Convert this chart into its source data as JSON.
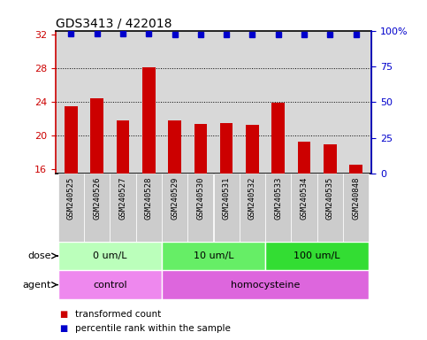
{
  "title": "GDS3413 / 422018",
  "samples": [
    "GSM240525",
    "GSM240526",
    "GSM240527",
    "GSM240528",
    "GSM240529",
    "GSM240530",
    "GSM240531",
    "GSM240532",
    "GSM240533",
    "GSM240534",
    "GSM240535",
    "GSM240848"
  ],
  "bar_values": [
    23.5,
    24.4,
    21.8,
    28.1,
    21.8,
    21.4,
    21.5,
    21.3,
    23.9,
    19.3,
    19.0,
    16.5
  ],
  "dot_y_values": [
    98,
    98,
    98,
    98,
    97,
    97,
    97,
    97,
    97,
    97,
    97,
    97
  ],
  "bar_color": "#cc0000",
  "dot_color": "#0000cc",
  "ylim_left": [
    15.5,
    32.5
  ],
  "ylim_right": [
    0,
    100
  ],
  "yticks_left": [
    16,
    20,
    24,
    28,
    32
  ],
  "yticks_right": [
    0,
    25,
    50,
    75,
    100
  ],
  "hgrid_lines": [
    20,
    24,
    28
  ],
  "dose_groups": [
    {
      "label": "0 um/L",
      "start": 0,
      "end": 4,
      "color": "#bbffbb"
    },
    {
      "label": "10 um/L",
      "start": 4,
      "end": 8,
      "color": "#66ee66"
    },
    {
      "label": "100 um/L",
      "start": 8,
      "end": 12,
      "color": "#33dd33"
    }
  ],
  "agent_groups": [
    {
      "label": "control",
      "start": 0,
      "end": 4,
      "color": "#ee88ee"
    },
    {
      "label": "homocysteine",
      "start": 4,
      "end": 12,
      "color": "#dd66dd"
    }
  ],
  "dose_label": "dose",
  "agent_label": "agent",
  "legend_bar": "transformed count",
  "legend_dot": "percentile rank within the sample",
  "axis_bg": "#d8d8d8",
  "sample_bg": "#cccccc",
  "bar_baseline": 15.5,
  "bar_width": 0.5
}
